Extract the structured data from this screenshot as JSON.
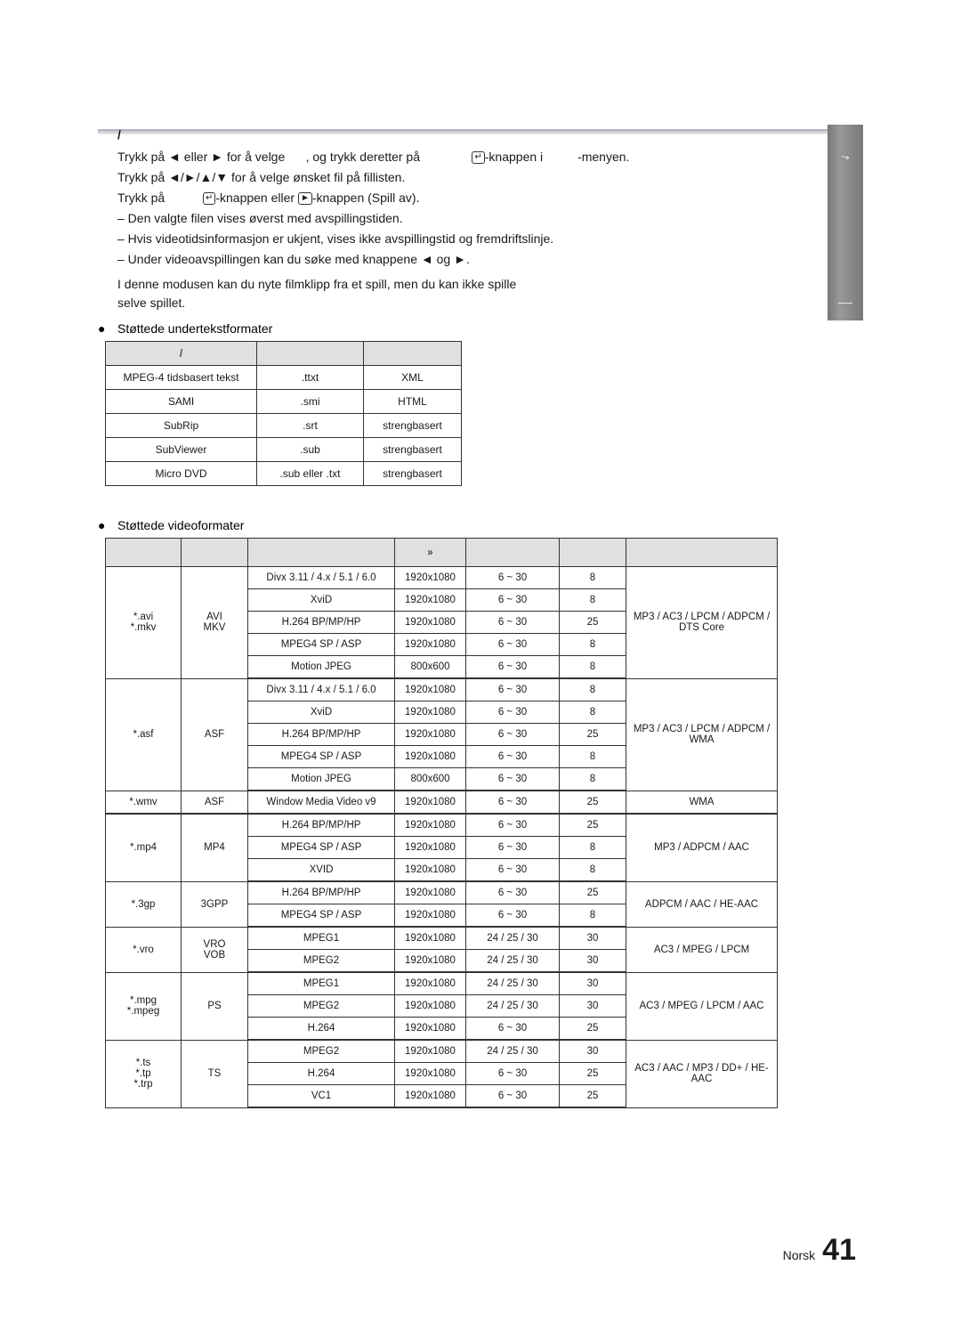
{
  "colors": {
    "text": "#1a1a1a",
    "table_border": "#333333",
    "header_bg": "#e0e0e0",
    "grey_tab": "#888888"
  },
  "header_slash": "/",
  "line1": {
    "a": "Trykk på ◄ eller ► for å velge",
    "b": ", og trykk deretter på",
    "c": "-knappen i",
    "d": "-menyen."
  },
  "line2": "Trykk på ◄/►/▲/▼ for å velge ønsket fil på fillisten.",
  "line3": {
    "a": "Trykk på",
    "b": "-knappen eller",
    "c": "-knappen (Spill av)."
  },
  "dash1": "–  Den valgte filen vises øverst med avspillingstiden.",
  "dash2": "–  Hvis videotidsinformasjon er ukjent, vises ikke avspillingstid og fremdriftslinje.",
  "dash3": "–  Under videoavspillingen kan du søke med knappene ◄ og ►.",
  "note": "I denne modusen kan du nyte filmklipp fra et spill, men du kan ikke spille selve spillet.",
  "bullet1": "Støttede undertekstformater",
  "subt_headers": {
    "c1": "/",
    "c2": "",
    "c3": ""
  },
  "subt_rows": [
    [
      "MPEG-4 tidsbasert tekst",
      ".ttxt",
      "XML"
    ],
    [
      "SAMI",
      ".smi",
      "HTML"
    ],
    [
      "SubRip",
      ".srt",
      "strengbasert"
    ],
    [
      "SubViewer",
      ".sub",
      "strengbasert"
    ],
    [
      "Micro DVD",
      ".sub eller .txt",
      "strengbasert"
    ]
  ],
  "bullet2": "Støttede videoformater",
  "vid_headers": [
    "",
    "",
    "",
    "»",
    "",
    "",
    ""
  ],
  "vid_groups": [
    {
      "ext": "*.avi\n*.mkv",
      "container": "AVI\nMKV",
      "audio": "MP3 / AC3 / LPCM / ADPCM / DTS Core",
      "rows": [
        [
          "Divx 3.11 / 4.x / 5.1 / 6.0",
          "1920x1080",
          "6 ~ 30",
          "8"
        ],
        [
          "XviD",
          "1920x1080",
          "6 ~ 30",
          "8"
        ],
        [
          "H.264 BP/MP/HP",
          "1920x1080",
          "6 ~ 30",
          "25"
        ],
        [
          "MPEG4 SP / ASP",
          "1920x1080",
          "6 ~ 30",
          "8"
        ],
        [
          "Motion JPEG",
          "800x600",
          "6 ~ 30",
          "8"
        ]
      ]
    },
    {
      "ext": "*.asf",
      "container": "ASF",
      "audio": "MP3 / AC3 / LPCM / ADPCM / WMA",
      "rows": [
        [
          "Divx 3.11 / 4.x / 5.1 / 6.0",
          "1920x1080",
          "6 ~ 30",
          "8"
        ],
        [
          "XviD",
          "1920x1080",
          "6 ~ 30",
          "8"
        ],
        [
          "H.264 BP/MP/HP",
          "1920x1080",
          "6 ~ 30",
          "25"
        ],
        [
          "MPEG4 SP / ASP",
          "1920x1080",
          "6 ~ 30",
          "8"
        ],
        [
          "Motion JPEG",
          "800x600",
          "6 ~ 30",
          "8"
        ]
      ]
    },
    {
      "ext": "*.wmv",
      "container": "ASF",
      "audio": "WMA",
      "rows": [
        [
          "Window Media Video v9",
          "1920x1080",
          "6 ~ 30",
          "25"
        ]
      ]
    },
    {
      "ext": "*.mp4",
      "container": "MP4",
      "audio": "MP3 / ADPCM / AAC",
      "rows": [
        [
          "H.264 BP/MP/HP",
          "1920x1080",
          "6 ~ 30",
          "25"
        ],
        [
          "MPEG4 SP / ASP",
          "1920x1080",
          "6 ~ 30",
          "8"
        ],
        [
          "XVID",
          "1920x1080",
          "6 ~ 30",
          "8"
        ]
      ]
    },
    {
      "ext": "*.3gp",
      "container": "3GPP",
      "audio": "ADPCM / AAC / HE-AAC",
      "rows": [
        [
          "H.264 BP/MP/HP",
          "1920x1080",
          "6 ~ 30",
          "25"
        ],
        [
          "MPEG4 SP / ASP",
          "1920x1080",
          "6 ~ 30",
          "8"
        ]
      ]
    },
    {
      "ext": "*.vro",
      "container": "VRO\nVOB",
      "audio": "AC3 / MPEG / LPCM",
      "rows": [
        [
          "MPEG1",
          "1920x1080",
          "24 / 25 / 30",
          "30"
        ],
        [
          "MPEG2",
          "1920x1080",
          "24 / 25 / 30",
          "30"
        ]
      ]
    },
    {
      "ext": "*.mpg\n*.mpeg",
      "container": "PS",
      "audio": "AC3 / MPEG / LPCM / AAC",
      "rows": [
        [
          "MPEG1",
          "1920x1080",
          "24 / 25 / 30",
          "30"
        ],
        [
          "MPEG2",
          "1920x1080",
          "24 / 25 / 30",
          "30"
        ],
        [
          "H.264",
          "1920x1080",
          "6 ~ 30",
          "25"
        ]
      ]
    },
    {
      "ext": "*.ts\n*.tp\n*.trp",
      "container": "TS",
      "audio": "AC3 / AAC / MP3 / DD+ / HE-AAC",
      "rows": [
        [
          "MPEG2",
          "1920x1080",
          "24 / 25 / 30",
          "30"
        ],
        [
          "H.264",
          "1920x1080",
          "6 ~ 30",
          "25"
        ],
        [
          "VC1",
          "1920x1080",
          "6 ~ 30",
          "25"
        ]
      ]
    }
  ],
  "footer": {
    "lang": "Norsk",
    "page": "41"
  }
}
